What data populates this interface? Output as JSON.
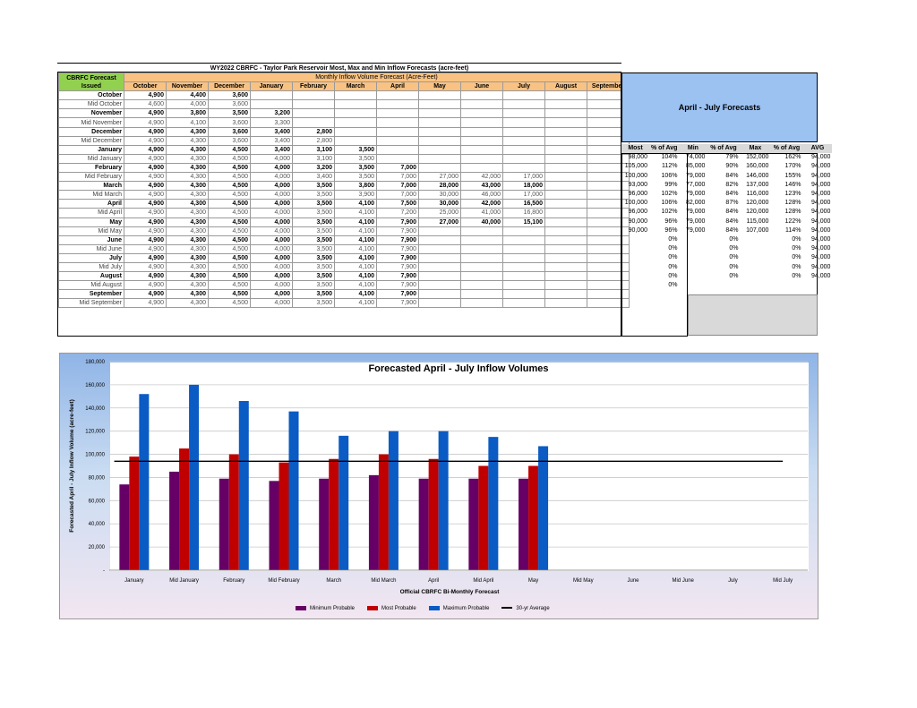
{
  "sheet_title": "WY2022 CBRFC - Taylor Park Reservoir Most, Max and Min Inflow Forecasts (acre-feet)",
  "table": {
    "corner_label": "CBRFC Forecast Issued",
    "group_header": "Monthly Inflow Volume Forecast (Acre-Feet)",
    "months": [
      "October",
      "November",
      "December",
      "January",
      "February",
      "March",
      "April",
      "May",
      "June",
      "July",
      "August",
      "September"
    ],
    "rows": [
      {
        "label": "October",
        "bold": true,
        "cells": [
          "4,900",
          "4,400",
          "3,600",
          "",
          "",
          "",
          "",
          "",
          "",
          "",
          "",
          ""
        ]
      },
      {
        "label": "Mid October",
        "bold": false,
        "cells": [
          "4,600",
          "4,000",
          "3,600",
          "",
          "",
          "",
          "",
          "",
          "",
          "",
          "",
          ""
        ]
      },
      {
        "label": "November",
        "bold": true,
        "cells": [
          "4,900",
          "3,800",
          "3,500",
          "3,200",
          "",
          "",
          "",
          "",
          "",
          "",
          "",
          ""
        ]
      },
      {
        "label": "Mid November",
        "bold": false,
        "cells": [
          "4,900",
          "4,100",
          "3,600",
          "3,300",
          "",
          "",
          "",
          "",
          "",
          "",
          "",
          ""
        ]
      },
      {
        "label": "December",
        "bold": true,
        "cells": [
          "4,900",
          "4,300",
          "3,600",
          "3,400",
          "2,800",
          "",
          "",
          "",
          "",
          "",
          "",
          ""
        ]
      },
      {
        "label": "Mid December",
        "bold": false,
        "cells": [
          "4,900",
          "4,300",
          "3,600",
          "3,400",
          "2,800",
          "",
          "",
          "",
          "",
          "",
          "",
          ""
        ]
      },
      {
        "label": "January",
        "bold": true,
        "cells": [
          "4,900",
          "4,300",
          "4,500",
          "3,400",
          "3,100",
          "3,500",
          "",
          "",
          "",
          "",
          "",
          ""
        ]
      },
      {
        "label": "Mid January",
        "bold": false,
        "cells": [
          "4,900",
          "4,300",
          "4,500",
          "4,000",
          "3,100",
          "3,500",
          "",
          "",
          "",
          "",
          "",
          ""
        ]
      },
      {
        "label": "February",
        "bold": true,
        "cells": [
          "4,900",
          "4,300",
          "4,500",
          "4,000",
          "3,200",
          "3,500",
          "7,000",
          "",
          "",
          "",
          "",
          ""
        ]
      },
      {
        "label": "Mid February",
        "bold": false,
        "cells": [
          "4,900",
          "4,300",
          "4,500",
          "4,000",
          "3,400",
          "3,500",
          "7,000",
          "27,000",
          "42,000",
          "17,000",
          "",
          ""
        ]
      },
      {
        "label": "March",
        "bold": true,
        "cells": [
          "4,900",
          "4,300",
          "4,500",
          "4,000",
          "3,500",
          "3,800",
          "7,000",
          "28,000",
          "43,000",
          "18,000",
          "",
          ""
        ]
      },
      {
        "label": "Mid March",
        "bold": false,
        "cells": [
          "4,900",
          "4,300",
          "4,500",
          "4,000",
          "3,500",
          "3,900",
          "7,000",
          "30,000",
          "46,000",
          "17,000",
          "",
          ""
        ]
      },
      {
        "label": "April",
        "bold": true,
        "cells": [
          "4,900",
          "4,300",
          "4,500",
          "4,000",
          "3,500",
          "4,100",
          "7,500",
          "30,000",
          "42,000",
          "16,500",
          "",
          ""
        ]
      },
      {
        "label": "Mid April",
        "bold": false,
        "cells": [
          "4,900",
          "4,300",
          "4,500",
          "4,000",
          "3,500",
          "4,100",
          "7,200",
          "25,000",
          "41,000",
          "16,800",
          "",
          ""
        ]
      },
      {
        "label": "May",
        "bold": true,
        "cells": [
          "4,900",
          "4,300",
          "4,500",
          "4,000",
          "3,500",
          "4,100",
          "7,900",
          "27,000",
          "40,000",
          "15,100",
          "",
          ""
        ]
      },
      {
        "label": "Mid May",
        "bold": false,
        "cells": [
          "4,900",
          "4,300",
          "4,500",
          "4,000",
          "3,500",
          "4,100",
          "7,900",
          "",
          "",
          "",
          "",
          ""
        ]
      },
      {
        "label": "June",
        "bold": true,
        "cells": [
          "4,900",
          "4,300",
          "4,500",
          "4,000",
          "3,500",
          "4,100",
          "7,900",
          "",
          "",
          "",
          "",
          ""
        ]
      },
      {
        "label": "Mid June",
        "bold": false,
        "cells": [
          "4,900",
          "4,300",
          "4,500",
          "4,000",
          "3,500",
          "4,100",
          "7,900",
          "",
          "",
          "",
          "",
          ""
        ]
      },
      {
        "label": "July",
        "bold": true,
        "cells": [
          "4,900",
          "4,300",
          "4,500",
          "4,000",
          "3,500",
          "4,100",
          "7,900",
          "",
          "",
          "",
          "",
          ""
        ]
      },
      {
        "label": "Mid July",
        "bold": false,
        "cells": [
          "4,900",
          "4,300",
          "4,500",
          "4,000",
          "3,500",
          "4,100",
          "7,900",
          "",
          "",
          "",
          "",
          ""
        ]
      },
      {
        "label": "August",
        "bold": true,
        "cells": [
          "4,900",
          "4,300",
          "4,500",
          "4,000",
          "3,500",
          "4,100",
          "7,900",
          "",
          "",
          "",
          "",
          ""
        ]
      },
      {
        "label": "Mid August",
        "bold": false,
        "cells": [
          "4,900",
          "4,300",
          "4,500",
          "4,000",
          "3,500",
          "4,100",
          "7,900",
          "",
          "",
          "",
          "",
          ""
        ]
      },
      {
        "label": "September",
        "bold": true,
        "cells": [
          "4,900",
          "4,300",
          "4,500",
          "4,000",
          "3,500",
          "4,100",
          "7,900",
          "",
          "",
          "",
          "",
          ""
        ]
      },
      {
        "label": "Mid September",
        "bold": false,
        "cells": [
          "4,900",
          "4,300",
          "4,500",
          "4,000",
          "3,500",
          "4,100",
          "7,900",
          "",
          "",
          "",
          "",
          ""
        ]
      }
    ]
  },
  "aj_panel": {
    "title": "April - July Forecasts",
    "headers": [
      "Most",
      "% of Avg",
      "Min",
      "% of Avg",
      "Max",
      "% of Avg",
      "AVG"
    ],
    "rows": [
      [
        "98,000",
        "104%",
        "74,000",
        "79%",
        "152,000",
        "162%",
        "94,000"
      ],
      [
        "105,000",
        "112%",
        "85,000",
        "90%",
        "160,000",
        "170%",
        "94,000"
      ],
      [
        "100,000",
        "106%",
        "79,000",
        "84%",
        "146,000",
        "155%",
        "94,000"
      ],
      [
        "93,000",
        "99%",
        "77,000",
        "82%",
        "137,000",
        "146%",
        "94,000"
      ],
      [
        "96,000",
        "102%",
        "79,000",
        "84%",
        "116,000",
        "123%",
        "94,000"
      ],
      [
        "100,000",
        "106%",
        "82,000",
        "87%",
        "120,000",
        "128%",
        "94,000"
      ],
      [
        "96,000",
        "102%",
        "79,000",
        "84%",
        "120,000",
        "128%",
        "94,000"
      ],
      [
        "90,000",
        "96%",
        "79,000",
        "84%",
        "115,000",
        "122%",
        "94,000"
      ],
      [
        "90,000",
        "96%",
        "79,000",
        "84%",
        "107,000",
        "114%",
        "94,000"
      ],
      [
        "",
        "0%",
        "",
        "0%",
        "",
        "0%",
        "94,000"
      ],
      [
        "",
        "0%",
        "",
        "0%",
        "",
        "0%",
        "94,000"
      ],
      [
        "",
        "0%",
        "",
        "0%",
        "",
        "0%",
        "94,000"
      ],
      [
        "",
        "0%",
        "",
        "0%",
        "",
        "0%",
        "94,000"
      ],
      [
        "",
        "0%",
        "",
        "0%",
        "",
        "0%",
        "94,000"
      ],
      [
        "",
        "0%",
        "",
        "",
        "",
        "",
        ""
      ]
    ]
  },
  "chart_data": {
    "type": "bar",
    "title": "Forecasted April - July Inflow Volumes",
    "xlabel": "Official CBRFC Bi-Monthly Forecast",
    "ylabel": "Forecasted April - July Inflow Volume (acre-feet)",
    "ylim": [
      0,
      180000
    ],
    "yticks": [
      "-",
      "20,000",
      "40,000",
      "60,000",
      "80,000",
      "100,000",
      "120,000",
      "140,000",
      "160,000",
      "180,000"
    ],
    "grid": true,
    "legend_position": "bottom",
    "categories": [
      "January",
      "Mid January",
      "February",
      "Mid February",
      "March",
      "Mid March",
      "April",
      "Mid April",
      "May",
      "Mid May",
      "June",
      "Mid June",
      "July",
      "Mid July"
    ],
    "series": [
      {
        "name": "Minimum Probable",
        "color": "#660066",
        "values": [
          74000,
          85000,
          79000,
          77000,
          79000,
          82000,
          79000,
          79000,
          79000,
          null,
          null,
          null,
          null,
          null
        ]
      },
      {
        "name": "Most Probable",
        "color": "#c00000",
        "values": [
          98000,
          105000,
          100000,
          93000,
          96000,
          100000,
          96000,
          90000,
          90000,
          null,
          null,
          null,
          null,
          null
        ]
      },
      {
        "name": "Maximum Probable",
        "color": "#0a5bc4",
        "values": [
          152000,
          160000,
          146000,
          137000,
          116000,
          120000,
          120000,
          115000,
          107000,
          null,
          null,
          null,
          null,
          null
        ]
      }
    ],
    "average": {
      "name": "30-yr Average",
      "value": 94000,
      "color": "#000000"
    }
  }
}
